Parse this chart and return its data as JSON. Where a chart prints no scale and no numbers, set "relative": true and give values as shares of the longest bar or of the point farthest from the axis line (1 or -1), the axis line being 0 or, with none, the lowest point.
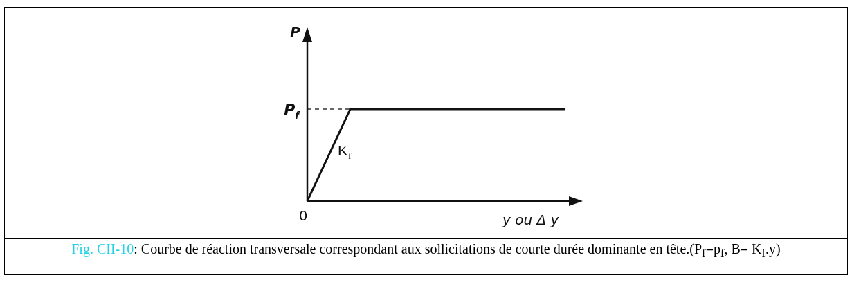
{
  "chart_data": {
    "type": "line",
    "relative": true,
    "title": "Fig. CII-10",
    "subtitle": ": Courbe de réaction transversale correspondant aux sollicitations de courte durée dominante en tête.(P$_{f}$=p$_{f}$, B= K$_{f}$.y)",
    "xlabel": "y ou Δ y",
    "categories": [
      null,
      null,
      null,
      null,
      null,
      null,
      null
    ],
    "series": [
      {
        "color": "#111111",
        "values": [
          0,
          1,
          1,
          1,
          1,
          1,
          1
        ]
      }
    ],
    "ref_lines": [
      {
        "axis": "y",
        "value": 1,
        "label": "P$_{f}$",
        "line_style": "dashed",
        "color": "#333333"
      }
    ],
    "annotations": [
      "K$_{f}$",
      "0",
      "P"
    ],
    "marker": "none",
    "line_style": "solid"
  }
}
